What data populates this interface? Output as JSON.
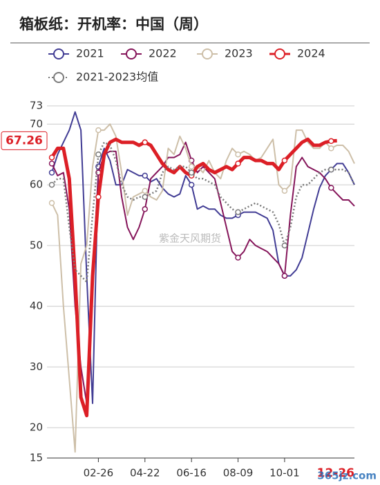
{
  "chart_data": {
    "type": "line",
    "title": "箱板纸：开机率：中国（周）",
    "categories": [
      null,
      null,
      null,
      null,
      null,
      null,
      null,
      null,
      "02-26",
      null,
      null,
      null,
      null,
      null,
      null,
      null,
      "04-22",
      null,
      null,
      null,
      null,
      null,
      null,
      null,
      "06-16",
      null,
      null,
      null,
      null,
      null,
      null,
      null,
      "08-09",
      null,
      null,
      null,
      null,
      null,
      null,
      null,
      "10-01",
      null,
      null,
      null,
      null,
      null,
      null,
      null,
      null,
      null,
      null,
      null,
      null
    ],
    "series": [
      {
        "name": "2021",
        "color": "#413c94",
        "values": [
          62,
          65,
          67,
          69,
          72,
          69,
          45,
          24,
          63,
          66,
          64,
          60,
          60,
          62.5,
          62,
          61.5,
          61.5,
          60.5,
          61,
          59.5,
          58.5,
          58,
          58.5,
          61.5,
          60,
          56,
          56.5,
          56,
          56,
          55,
          54.5,
          54.5,
          55,
          55.5,
          55.5,
          55.5,
          55,
          54.5,
          52.5,
          47,
          45,
          45,
          46,
          48,
          52,
          56,
          59.5,
          61.5,
          62.5,
          63.5,
          63.5,
          62,
          60
        ]
      },
      {
        "name": "2022",
        "color": "#85155a",
        "values": [
          63.5,
          61.5,
          62,
          56,
          40,
          30,
          24,
          45,
          62,
          65,
          65.5,
          65.5,
          58,
          53,
          51,
          53,
          56,
          61,
          62,
          63,
          64.5,
          64.5,
          65,
          67,
          64,
          62,
          63,
          62,
          61,
          57,
          53,
          49,
          48,
          49,
          51,
          50,
          49.5,
          49,
          48,
          47,
          45,
          55,
          63,
          64.5,
          63,
          62.5,
          62,
          61,
          59.5,
          58.5,
          57.5,
          57.5,
          56.5
        ]
      },
      {
        "name": "2023",
        "color": "#cdbfa8",
        "values": [
          57,
          55,
          40,
          28,
          16,
          47,
          50,
          63,
          69,
          69,
          70,
          68,
          62,
          55,
          58,
          58.5,
          59,
          58,
          57.5,
          59,
          66,
          65,
          68,
          66,
          63,
          63,
          62,
          64,
          62,
          61,
          64,
          66,
          65,
          65.5,
          65,
          64,
          64.5,
          66,
          67.5,
          60,
          59,
          60,
          69,
          69,
          67,
          66,
          66,
          67,
          66,
          66.5,
          66.5,
          65.5,
          63.5
        ]
      },
      {
        "name": "2024",
        "color": "#dc1f26",
        "values": [
          64.5,
          66,
          66,
          61,
          45,
          25,
          22,
          45,
          58,
          65,
          67,
          67.5,
          67,
          67,
          67,
          66.5,
          67,
          66.5,
          65,
          63.5,
          62.5,
          62,
          63,
          62,
          61.5,
          63,
          63.5,
          62.5,
          62,
          62.5,
          63,
          62.5,
          63.5,
          64.5,
          64.5,
          64,
          64,
          63.5,
          63.5,
          62.5,
          64,
          65,
          66,
          67,
          67.5,
          66.5,
          66.5,
          67,
          67.2,
          67.26,
          null,
          null,
          null
        ]
      },
      {
        "name": "2021-2023均值",
        "color": "#7a7a7a",
        "dashed": true,
        "values": [
          60,
          61,
          61,
          53,
          46,
          45,
          44,
          55,
          65,
          67,
          66.5,
          64,
          60,
          58,
          57.5,
          58,
          58,
          58.5,
          59,
          62,
          63,
          62.5,
          63,
          63,
          62,
          61,
          61,
          60.5,
          60,
          58,
          57,
          56,
          55.5,
          56,
          56.5,
          57,
          56.5,
          56,
          55.5,
          53.5,
          50,
          53,
          58,
          60,
          60,
          61,
          62,
          62.5,
          62.5,
          62.5,
          62.5,
          62,
          60
        ]
      }
    ],
    "ylim": [
      15,
      73
    ],
    "yticks": [
      15,
      20,
      30,
      40,
      50,
      60,
      70,
      73
    ],
    "grid": true,
    "pointer": {
      "y": 67.26,
      "x": "12-26"
    },
    "watermark": "紫金天风期货",
    "site_watermark": "365jz.com"
  }
}
